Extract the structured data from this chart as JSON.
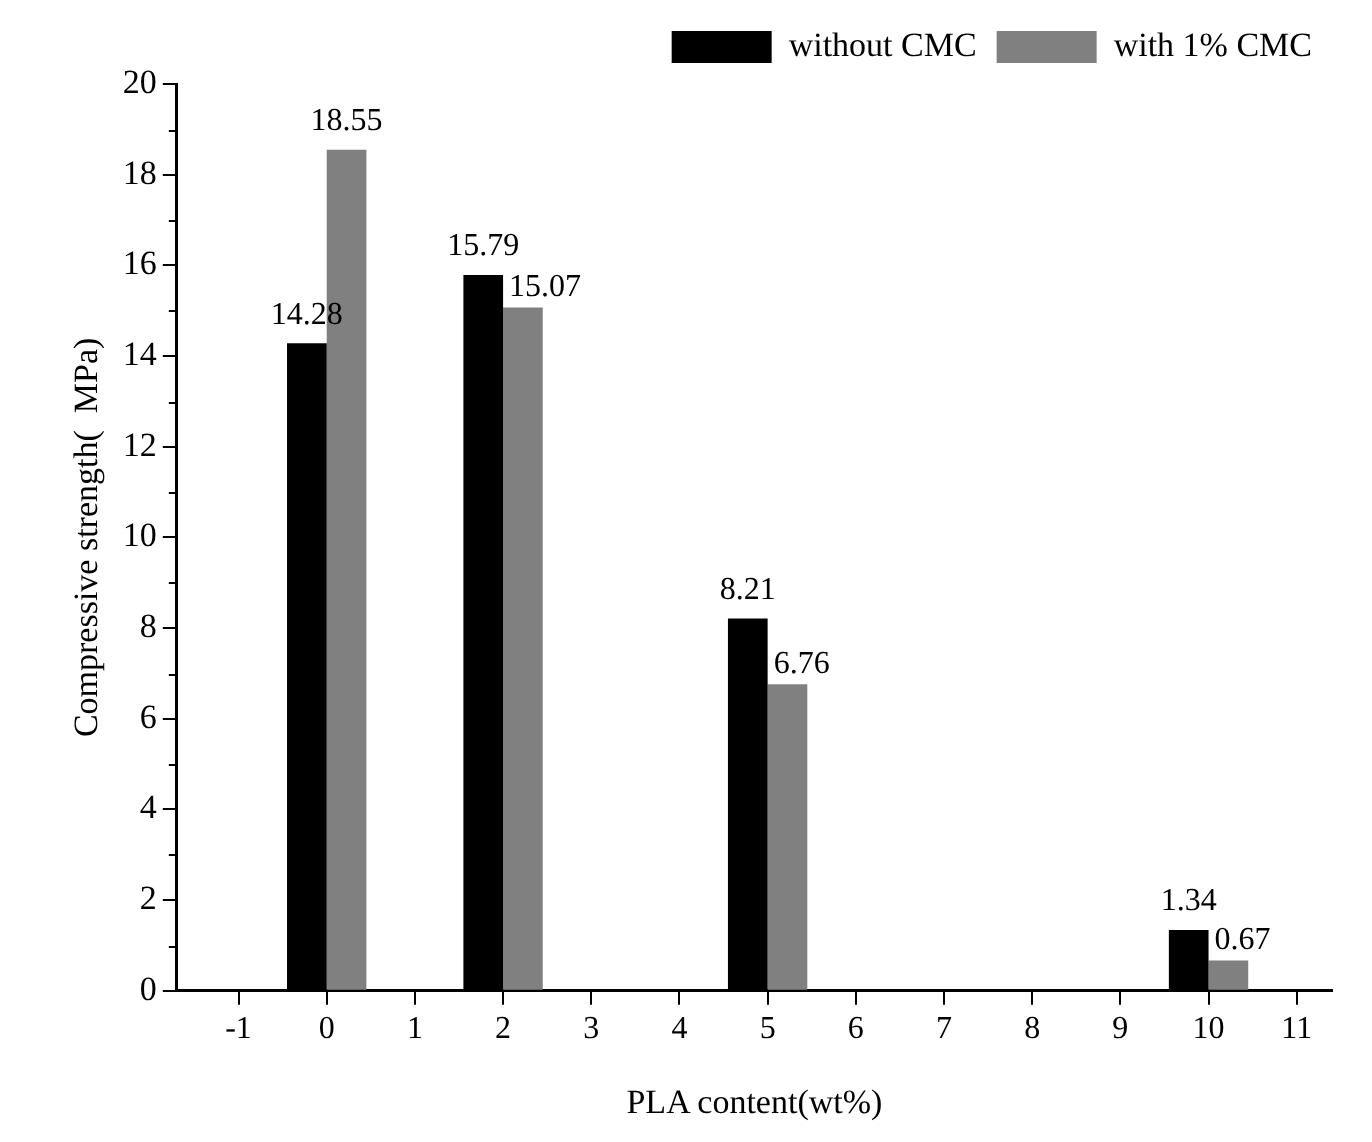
{
  "chart_data": {
    "type": "bar",
    "xlabel": "PLA content(wt%)",
    "ylabel": "Compressive strength(  MPa)",
    "x": [
      0,
      2,
      5,
      10
    ],
    "series": [
      {
        "name": "without CMC",
        "color": "#000000",
        "values": [
          14.28,
          15.79,
          8.21,
          1.34
        ]
      },
      {
        "name": "with 1% CMC",
        "color": "#808080",
        "values": [
          18.55,
          15.07,
          6.76,
          0.67
        ]
      }
    ],
    "xlim": [
      -1.7,
      11.4
    ],
    "xticks": [
      -1,
      0,
      1,
      2,
      3,
      4,
      5,
      6,
      7,
      8,
      9,
      10,
      11
    ],
    "ylim": [
      0,
      20
    ],
    "yticks": [
      0,
      {
        "value": 1,
        "label": null
      },
      2,
      {
        "value": 3,
        "label": null
      },
      4,
      {
        "value": 5,
        "label": null
      },
      6,
      {
        "value": 7,
        "label": null
      },
      8,
      {
        "value": 9,
        "label": null
      },
      10,
      {
        "value": 11,
        "label": null
      },
      12,
      {
        "value": 13,
        "label": null
      },
      14,
      {
        "value": 15,
        "label": null
      },
      16,
      {
        "value": 17,
        "label": null
      },
      18,
      {
        "value": 19,
        "label": null
      },
      20
    ],
    "data_labels": true,
    "grid": false,
    "legend": "top right"
  }
}
